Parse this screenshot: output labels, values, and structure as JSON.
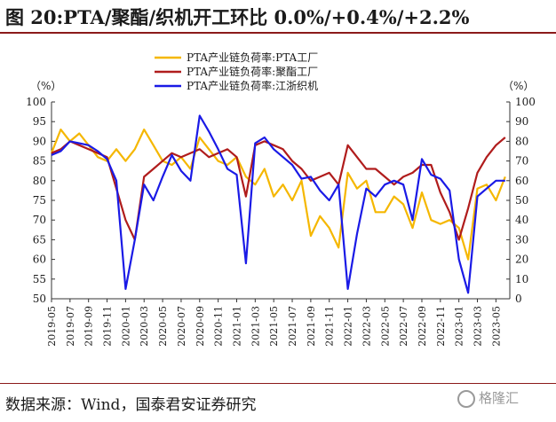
{
  "title": "图 20:PTA/聚酯/织机开工环比 0.0%/+0.4%/+2.2%",
  "source": "数据来源：Wind，国泰君安证券研究",
  "watermark": "格隆汇",
  "chart_data": {
    "type": "line",
    "y_left_unit": "（%）",
    "y_right_unit": "（%）",
    "ylim_left": [
      50,
      100
    ],
    "ylim_right": [
      0,
      100
    ],
    "y_left_ticks": [
      50,
      55,
      60,
      65,
      70,
      75,
      80,
      85,
      90,
      95,
      100
    ],
    "y_right_ticks": [
      0,
      10,
      20,
      30,
      40,
      50,
      60,
      70,
      80,
      90,
      100
    ],
    "x_tick_labels": [
      "2019-05",
      "2019-07",
      "2019-09",
      "2019-11",
      "2020-01",
      "2020-03",
      "2020-05",
      "2020-07",
      "2020-09",
      "2020-11",
      "2021-01",
      "2021-03",
      "2021-05",
      "2021-07",
      "2021-09",
      "2021-11",
      "2022-01",
      "2022-03",
      "2022-05",
      "2022-07",
      "2022-09",
      "2022-11",
      "2023-01",
      "2023-03",
      "2023-05"
    ],
    "legend_position": "top-center",
    "grid": false,
    "series": [
      {
        "name": "PTA产业链负荷率:PTA工厂",
        "axis": "left",
        "color": "#f5b700",
        "x": [
          "2019-05",
          "2019-06",
          "2019-07",
          "2019-08",
          "2019-09",
          "2019-10",
          "2019-11",
          "2019-12",
          "2020-01",
          "2020-02",
          "2020-03",
          "2020-04",
          "2020-05",
          "2020-06",
          "2020-07",
          "2020-08",
          "2020-09",
          "2020-10",
          "2020-11",
          "2020-12",
          "2021-01",
          "2021-02",
          "2021-03",
          "2021-04",
          "2021-05",
          "2021-06",
          "2021-07",
          "2021-08",
          "2021-09",
          "2021-10",
          "2021-11",
          "2021-12",
          "2022-01",
          "2022-02",
          "2022-03",
          "2022-04",
          "2022-05",
          "2022-06",
          "2022-07",
          "2022-08",
          "2022-09",
          "2022-10",
          "2022-11",
          "2022-12",
          "2023-01",
          "2023-02",
          "2023-03",
          "2023-04",
          "2023-05",
          "2023-06"
        ],
        "values": [
          87,
          93,
          90,
          92,
          89,
          86,
          85,
          88,
          85,
          88,
          93,
          89,
          85,
          84,
          86,
          83,
          91,
          88,
          85,
          84,
          86,
          81,
          79,
          83,
          76,
          79,
          75,
          80,
          66,
          71,
          68,
          63,
          82,
          78,
          80,
          72,
          72,
          76,
          74,
          68,
          77,
          70,
          69,
          70,
          68,
          60,
          78,
          79,
          75,
          81
        ]
      },
      {
        "name": "PTA产业链负荷率:聚酯工厂",
        "axis": "left",
        "color": "#b01c1c",
        "x": [
          "2019-05",
          "2019-06",
          "2019-07",
          "2019-08",
          "2019-09",
          "2019-10",
          "2019-11",
          "2019-12",
          "2020-01",
          "2020-02",
          "2020-03",
          "2020-04",
          "2020-05",
          "2020-06",
          "2020-07",
          "2020-08",
          "2020-09",
          "2020-10",
          "2020-11",
          "2020-12",
          "2021-01",
          "2021-02",
          "2021-03",
          "2021-04",
          "2021-05",
          "2021-06",
          "2021-07",
          "2021-08",
          "2021-09",
          "2021-10",
          "2021-11",
          "2021-12",
          "2022-01",
          "2022-02",
          "2022-03",
          "2022-04",
          "2022-05",
          "2022-06",
          "2022-07",
          "2022-08",
          "2022-09",
          "2022-10",
          "2022-11",
          "2022-12",
          "2023-01",
          "2023-02",
          "2023-03",
          "2023-04",
          "2023-05",
          "2023-06"
        ],
        "values": [
          87,
          88,
          90,
          89,
          88,
          87,
          86,
          78,
          70,
          65,
          81,
          83,
          85,
          87,
          86,
          87,
          88,
          86,
          87,
          88,
          86,
          76,
          89,
          90,
          89,
          88,
          85,
          83,
          80,
          81,
          82,
          79,
          89,
          86,
          83,
          83,
          81,
          79,
          81,
          82,
          84,
          84,
          77,
          72,
          65,
          73,
          82,
          86,
          89,
          91
        ]
      },
      {
        "name": "PTA产业链负荷率:江浙织机",
        "axis": "right",
        "color": "#1a1ae6",
        "x": [
          "2019-05",
          "2019-06",
          "2019-07",
          "2019-08",
          "2019-09",
          "2019-10",
          "2019-11",
          "2019-12",
          "2020-01",
          "2020-02",
          "2020-03",
          "2020-04",
          "2020-05",
          "2020-06",
          "2020-07",
          "2020-08",
          "2020-09",
          "2020-10",
          "2020-11",
          "2020-12",
          "2021-01",
          "2021-02",
          "2021-03",
          "2021-04",
          "2021-05",
          "2021-06",
          "2021-07",
          "2021-08",
          "2021-09",
          "2021-10",
          "2021-11",
          "2021-12",
          "2022-01",
          "2022-02",
          "2022-03",
          "2022-04",
          "2022-05",
          "2022-06",
          "2022-07",
          "2022-08",
          "2022-09",
          "2022-10",
          "2022-11",
          "2022-12",
          "2023-01",
          "2023-02",
          "2023-03",
          "2023-04",
          "2023-05",
          "2023-06"
        ],
        "values": [
          73,
          75,
          80,
          79,
          78,
          75,
          71,
          60,
          5,
          30,
          58,
          50,
          62,
          73,
          65,
          60,
          93,
          85,
          76,
          66,
          63,
          18,
          79,
          82,
          76,
          72,
          68,
          61,
          62,
          55,
          50,
          58,
          5,
          33,
          56,
          52,
          58,
          60,
          58,
          40,
          71,
          63,
          61,
          55,
          20,
          3,
          52,
          56,
          60,
          60
        ]
      }
    ]
  }
}
